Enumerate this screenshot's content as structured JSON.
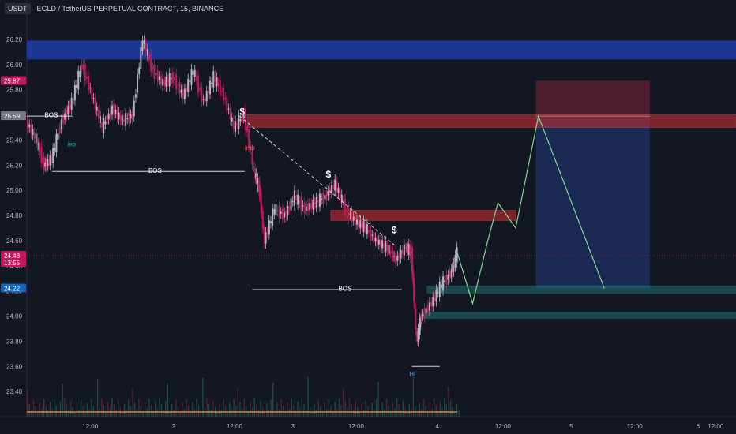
{
  "header": {
    "currency": "USDT",
    "title": "EGLD / TetherUS PERPETUAL CONTRACT, 15, BINANCE"
  },
  "colors": {
    "background": "#131722",
    "bull": "#b2b5be",
    "bear": "#c2185b",
    "supply_zone": "#d32f2f",
    "demand_zone": "#26a69a",
    "blue_zone": "#1e3ea8",
    "projection": "#7ed98e"
  },
  "chart_data": {
    "type": "line",
    "ylim": [
      23.2,
      26.4
    ],
    "y_ticks": [
      "23.40",
      "23.60",
      "23.80",
      "24.00",
      "24.20",
      "24.40",
      "24.60",
      "24.80",
      "25.00",
      "25.20",
      "25.40",
      "25.60",
      "25.80",
      "26.00",
      "26.20"
    ],
    "x_ticks": [
      "12:00",
      "2",
      "12:00",
      "3",
      "12:00",
      "4",
      "12:00",
      "5",
      "12:00",
      "6",
      "12:00"
    ],
    "price_badges": [
      {
        "label": "25.87",
        "value": 25.87,
        "color": "#c2185b"
      },
      {
        "label": "25.59",
        "value": 25.59,
        "color": "#787b86"
      },
      {
        "label": "24.48",
        "value": 24.48,
        "color": "#c2185b",
        "sub": "13:55"
      },
      {
        "label": "24.22",
        "value": 24.22,
        "color": "#1565c0"
      }
    ],
    "price_path": [
      [
        0,
        25.55
      ],
      [
        0.4,
        25.4
      ],
      [
        0.7,
        25.2
      ],
      [
        1.0,
        25.25
      ],
      [
        1.4,
        25.55
      ],
      [
        1.8,
        25.7
      ],
      [
        2.2,
        26.0
      ],
      [
        2.6,
        25.75
      ],
      [
        3.0,
        25.5
      ],
      [
        3.4,
        25.65
      ],
      [
        3.8,
        25.55
      ],
      [
        4.2,
        25.6
      ],
      [
        4.6,
        26.2
      ],
      [
        5.0,
        25.95
      ],
      [
        5.4,
        25.85
      ],
      [
        5.8,
        25.9
      ],
      [
        6.2,
        25.75
      ],
      [
        6.6,
        25.95
      ],
      [
        7.0,
        25.7
      ],
      [
        7.4,
        25.9
      ],
      [
        7.8,
        25.75
      ],
      [
        8.2,
        25.5
      ],
      [
        8.6,
        25.6
      ],
      [
        9.0,
        25.15
      ],
      [
        9.2,
        25.0
      ],
      [
        9.4,
        24.6
      ],
      [
        9.8,
        24.85
      ],
      [
        10.2,
        24.8
      ],
      [
        10.6,
        24.95
      ],
      [
        11.0,
        24.85
      ],
      [
        11.4,
        24.9
      ],
      [
        11.8,
        24.95
      ],
      [
        12.2,
        25.05
      ],
      [
        12.6,
        24.85
      ],
      [
        13.0,
        24.75
      ],
      [
        13.4,
        24.7
      ],
      [
        13.8,
        24.6
      ],
      [
        14.2,
        24.55
      ],
      [
        14.6,
        24.45
      ],
      [
        15.0,
        24.55
      ],
      [
        15.2,
        24.5
      ],
      [
        15.4,
        23.8
      ],
      [
        15.6,
        24.0
      ],
      [
        16.0,
        24.1
      ],
      [
        16.4,
        24.25
      ],
      [
        16.8,
        24.35
      ],
      [
        17.0,
        24.5
      ]
    ],
    "projection_path": [
      [
        17.0,
        24.5
      ],
      [
        17.6,
        24.1
      ],
      [
        18.2,
        24.6
      ],
      [
        18.6,
        24.9
      ],
      [
        19.3,
        24.7
      ],
      [
        20.2,
        25.59
      ],
      [
        22.8,
        24.22
      ]
    ],
    "supply_zones": [
      {
        "x0": 8.7,
        "x1": 28,
        "y0": 25.5,
        "y1": 25.6
      },
      {
        "x0": 12.0,
        "x1": 19.3,
        "y0": 24.76,
        "y1": 24.84
      }
    ],
    "blue_zone": {
      "y0": 26.04,
      "y1": 26.19
    },
    "demand_zones": [
      {
        "x0": 15.8,
        "x1": 28,
        "y0": 24.18,
        "y1": 24.24
      },
      {
        "x0": 15.6,
        "x1": 28,
        "y0": 23.98,
        "y1": 24.03
      }
    ],
    "trade_box": {
      "x0": 20.1,
      "x1": 24.6,
      "entry": 25.59,
      "stop": 25.87,
      "target": 24.22
    },
    "labels": [
      {
        "text": "BOS",
        "x": 0.7,
        "y": 25.58,
        "color": "#ffffff"
      },
      {
        "text": "ieb",
        "x": 1.6,
        "y": 25.35,
        "color": "#26a69a"
      },
      {
        "text": "BOS",
        "x": 4.8,
        "y": 25.14,
        "color": "#ffffff"
      },
      {
        "text": "imb",
        "x": 8.6,
        "y": 25.32,
        "color": "#ef5350"
      },
      {
        "text": "$",
        "x": 8.4,
        "y": 25.6,
        "color": "#ffffff"
      },
      {
        "text": "$",
        "x": 11.8,
        "y": 25.1,
        "color": "#ffffff"
      },
      {
        "text": "$",
        "x": 14.4,
        "y": 24.66,
        "color": "#ffffff"
      },
      {
        "text": "BOS",
        "x": 12.3,
        "y": 24.2,
        "color": "#ffffff"
      },
      {
        "text": "HL",
        "x": 15.1,
        "y": 23.52,
        "color": "#42a5f5"
      }
    ],
    "bos_lines": [
      {
        "x0": 0,
        "x1": 1.8,
        "y": 25.59
      },
      {
        "x0": 1.0,
        "x1": 8.6,
        "y": 25.15
      },
      {
        "x0": 8.9,
        "x1": 14.8,
        "y": 24.21
      },
      {
        "x0": 15.2,
        "x1": 16.3,
        "y": 23.6
      }
    ],
    "trend_line": {
      "x0": 8.4,
      "y0": 25.59,
      "x1": 14.6,
      "y1": 24.55
    }
  }
}
